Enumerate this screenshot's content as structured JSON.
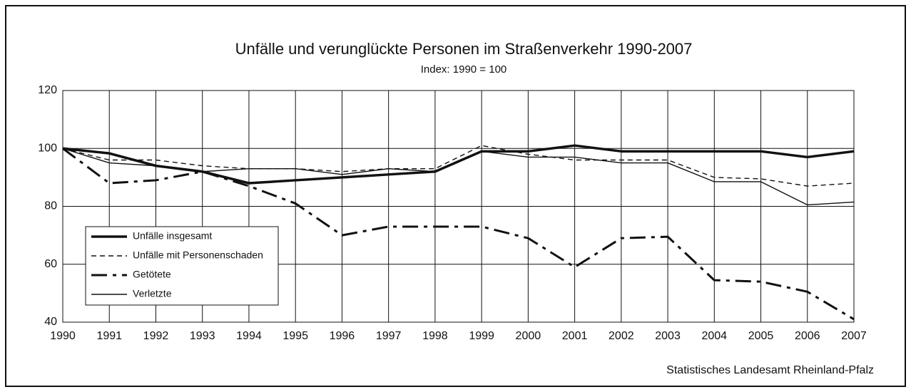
{
  "chart_data": {
    "type": "line",
    "title": "Unfälle und verunglückte Personen im Straßenverkehr 1990-2007",
    "subtitle": "Index: 1990 = 100",
    "source": "Statistisches Landesamt Rheinland-Pfalz",
    "x": [
      1990,
      1991,
      1992,
      1993,
      1994,
      1995,
      1996,
      1997,
      1998,
      1999,
      2000,
      2001,
      2002,
      2003,
      2004,
      2005,
      2006,
      2007
    ],
    "xlim": [
      1990,
      2007
    ],
    "xticks": [
      1990,
      1991,
      1992,
      1993,
      1994,
      1995,
      1996,
      1997,
      1998,
      1999,
      2000,
      2001,
      2002,
      2003,
      2004,
      2005,
      2006,
      2007
    ],
    "ylim": [
      40,
      120
    ],
    "yticks": [
      40,
      60,
      80,
      100,
      120
    ],
    "grid": true,
    "legend": "lower-left",
    "series": [
      {
        "name": "Unfälle insgesamt",
        "color": "#111111",
        "style": "bold",
        "values": [
          100,
          98.3,
          94,
          92,
          88,
          89,
          90,
          91,
          92,
          99,
          99,
          101,
          99,
          99,
          99,
          99,
          97,
          99
        ]
      },
      {
        "name": "Unfälle mit Personenschaden",
        "color": "#111111",
        "style": "dashed",
        "values": [
          100,
          96,
          96,
          94,
          93,
          93,
          92,
          93,
          93,
          101,
          98,
          96,
          96,
          96,
          90,
          89.5,
          87,
          88
        ]
      },
      {
        "name": "Getötete",
        "color": "#111111",
        "style": "dash-dot",
        "values": [
          100,
          88,
          89,
          92,
          87,
          81,
          70,
          73,
          73,
          73,
          69,
          59,
          69,
          69.5,
          54.5,
          54,
          50.5,
          41
        ]
      },
      {
        "name": "Verletzte",
        "color": "#111111",
        "style": "thin",
        "values": [
          100,
          95,
          94,
          92,
          93,
          93,
          91,
          93,
          92,
          99,
          97,
          97,
          95,
          95,
          88.5,
          88.5,
          80.5,
          81.5
        ]
      }
    ]
  }
}
